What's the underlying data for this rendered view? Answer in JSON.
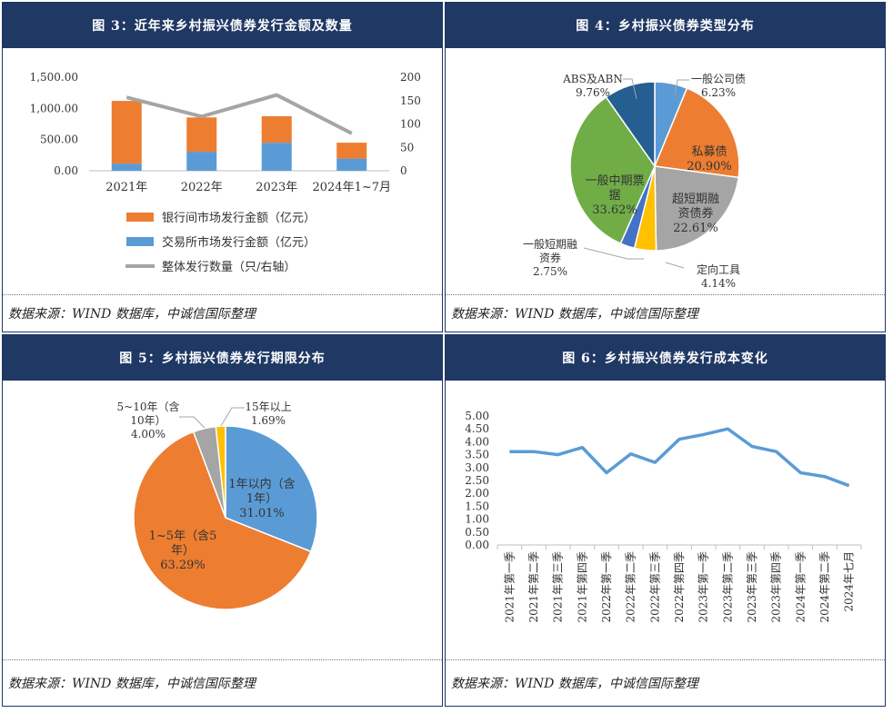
{
  "panels": [
    {
      "title": "图 3：近年来乡村振兴债券发行金额及数量",
      "source": "数据来源：WIND 数据库，中诚信国际整理"
    },
    {
      "title": "图 4：乡村振兴债券类型分布",
      "source": "数据来源：WIND 数据库，中诚信国际整理"
    },
    {
      "title": "图 5：乡村振兴债券发行期限分布",
      "source": "数据来源：WIND 数据库，中诚信国际整理"
    },
    {
      "title": "图 6：乡村振兴债券发行成本变化",
      "source": "数据来源：WIND 数据库，中诚信国际整理"
    }
  ],
  "chart_data": [
    {
      "type": "bar",
      "stacked": true,
      "categories": [
        "2021年",
        "2022年",
        "2023年",
        "2024年1~7月"
      ],
      "series": [
        {
          "name": "银行间市场发行金额（亿元）",
          "values": [
            1005,
            550,
            425,
            255
          ],
          "color": "#ed7d31",
          "stack_order": 2
        },
        {
          "name": "交易所市场发行金额（亿元）",
          "values": [
            115,
            305,
            450,
            195
          ],
          "color": "#5b9bd5",
          "stack_order": 1
        },
        {
          "name": "整体发行数量（只/右轴）",
          "values": [
            157,
            116,
            162,
            80
          ],
          "type": "line",
          "axis": "right",
          "color": "#a5a5a5"
        }
      ],
      "left_ticks": [
        "0.00",
        "500.00",
        "1,000.00",
        "1,500.00"
      ],
      "left_ylim": [
        0,
        1500
      ],
      "right_ticks": [
        "0",
        "50",
        "100",
        "150",
        "200"
      ],
      "right_ylim": [
        0,
        200
      ],
      "legend_position": "bottom"
    },
    {
      "type": "pie",
      "slices": [
        {
          "label": "一般公司债",
          "pct_label": "6.23%",
          "value": 6.23,
          "color": "#5b9bd5"
        },
        {
          "label": "私募债",
          "pct_label": "20.90%",
          "value": 20.9,
          "color": "#ed7d31"
        },
        {
          "label": "超短期融资债券",
          "pct_label": "22.61%",
          "value": 22.61,
          "color": "#a5a5a5"
        },
        {
          "label": "定向工具",
          "pct_label": "4.14%",
          "value": 4.14,
          "color": "#ffc000"
        },
        {
          "label": "一般短期融资券",
          "pct_label": "2.75%",
          "value": 2.75,
          "color": "#4472c4"
        },
        {
          "label": "一般中期票据",
          "pct_label": "33.62%",
          "value": 33.62,
          "color": "#70ad47"
        },
        {
          "label": "ABS及ABN",
          "pct_label": "9.76%",
          "value": 9.76,
          "color": "#255e91"
        }
      ]
    },
    {
      "type": "pie",
      "slices": [
        {
          "label": "1年以内（含1年）",
          "pct_label": "31.01%",
          "value": 31.01,
          "color": "#5b9bd5"
        },
        {
          "label": "1~5年（含5年）",
          "pct_label": "63.29%",
          "value": 63.29,
          "color": "#ed7d31"
        },
        {
          "label": "5~10年（含10年）",
          "pct_label": "4.00%",
          "value": 4.0,
          "color": "#a5a5a5"
        },
        {
          "label": "15年以上",
          "pct_label": "1.69%",
          "value": 1.69,
          "color": "#ffc000"
        }
      ]
    },
    {
      "type": "line",
      "categories": [
        "2021年第一季",
        "2021年第二季",
        "2021年第三季",
        "2021年第四季",
        "2022年第一季",
        "2022年第二季",
        "2022年第三季",
        "2022年第四季",
        "2023年第一季",
        "2023年第二季",
        "2023年第三季",
        "2023年第四季",
        "2024年第一季",
        "2024年第二季",
        "2024年七月"
      ],
      "values": [
        3.62,
        3.62,
        3.5,
        3.78,
        2.8,
        3.53,
        3.2,
        4.1,
        4.28,
        4.5,
        3.82,
        3.62,
        2.8,
        2.65,
        2.3
      ],
      "ticks": [
        "0.00",
        "0.50",
        "1.00",
        "1.50",
        "2.00",
        "2.50",
        "3.00",
        "3.50",
        "4.00",
        "4.50",
        "5.00"
      ],
      "ylim": [
        0,
        5
      ],
      "color": "#5b9bd5"
    }
  ]
}
